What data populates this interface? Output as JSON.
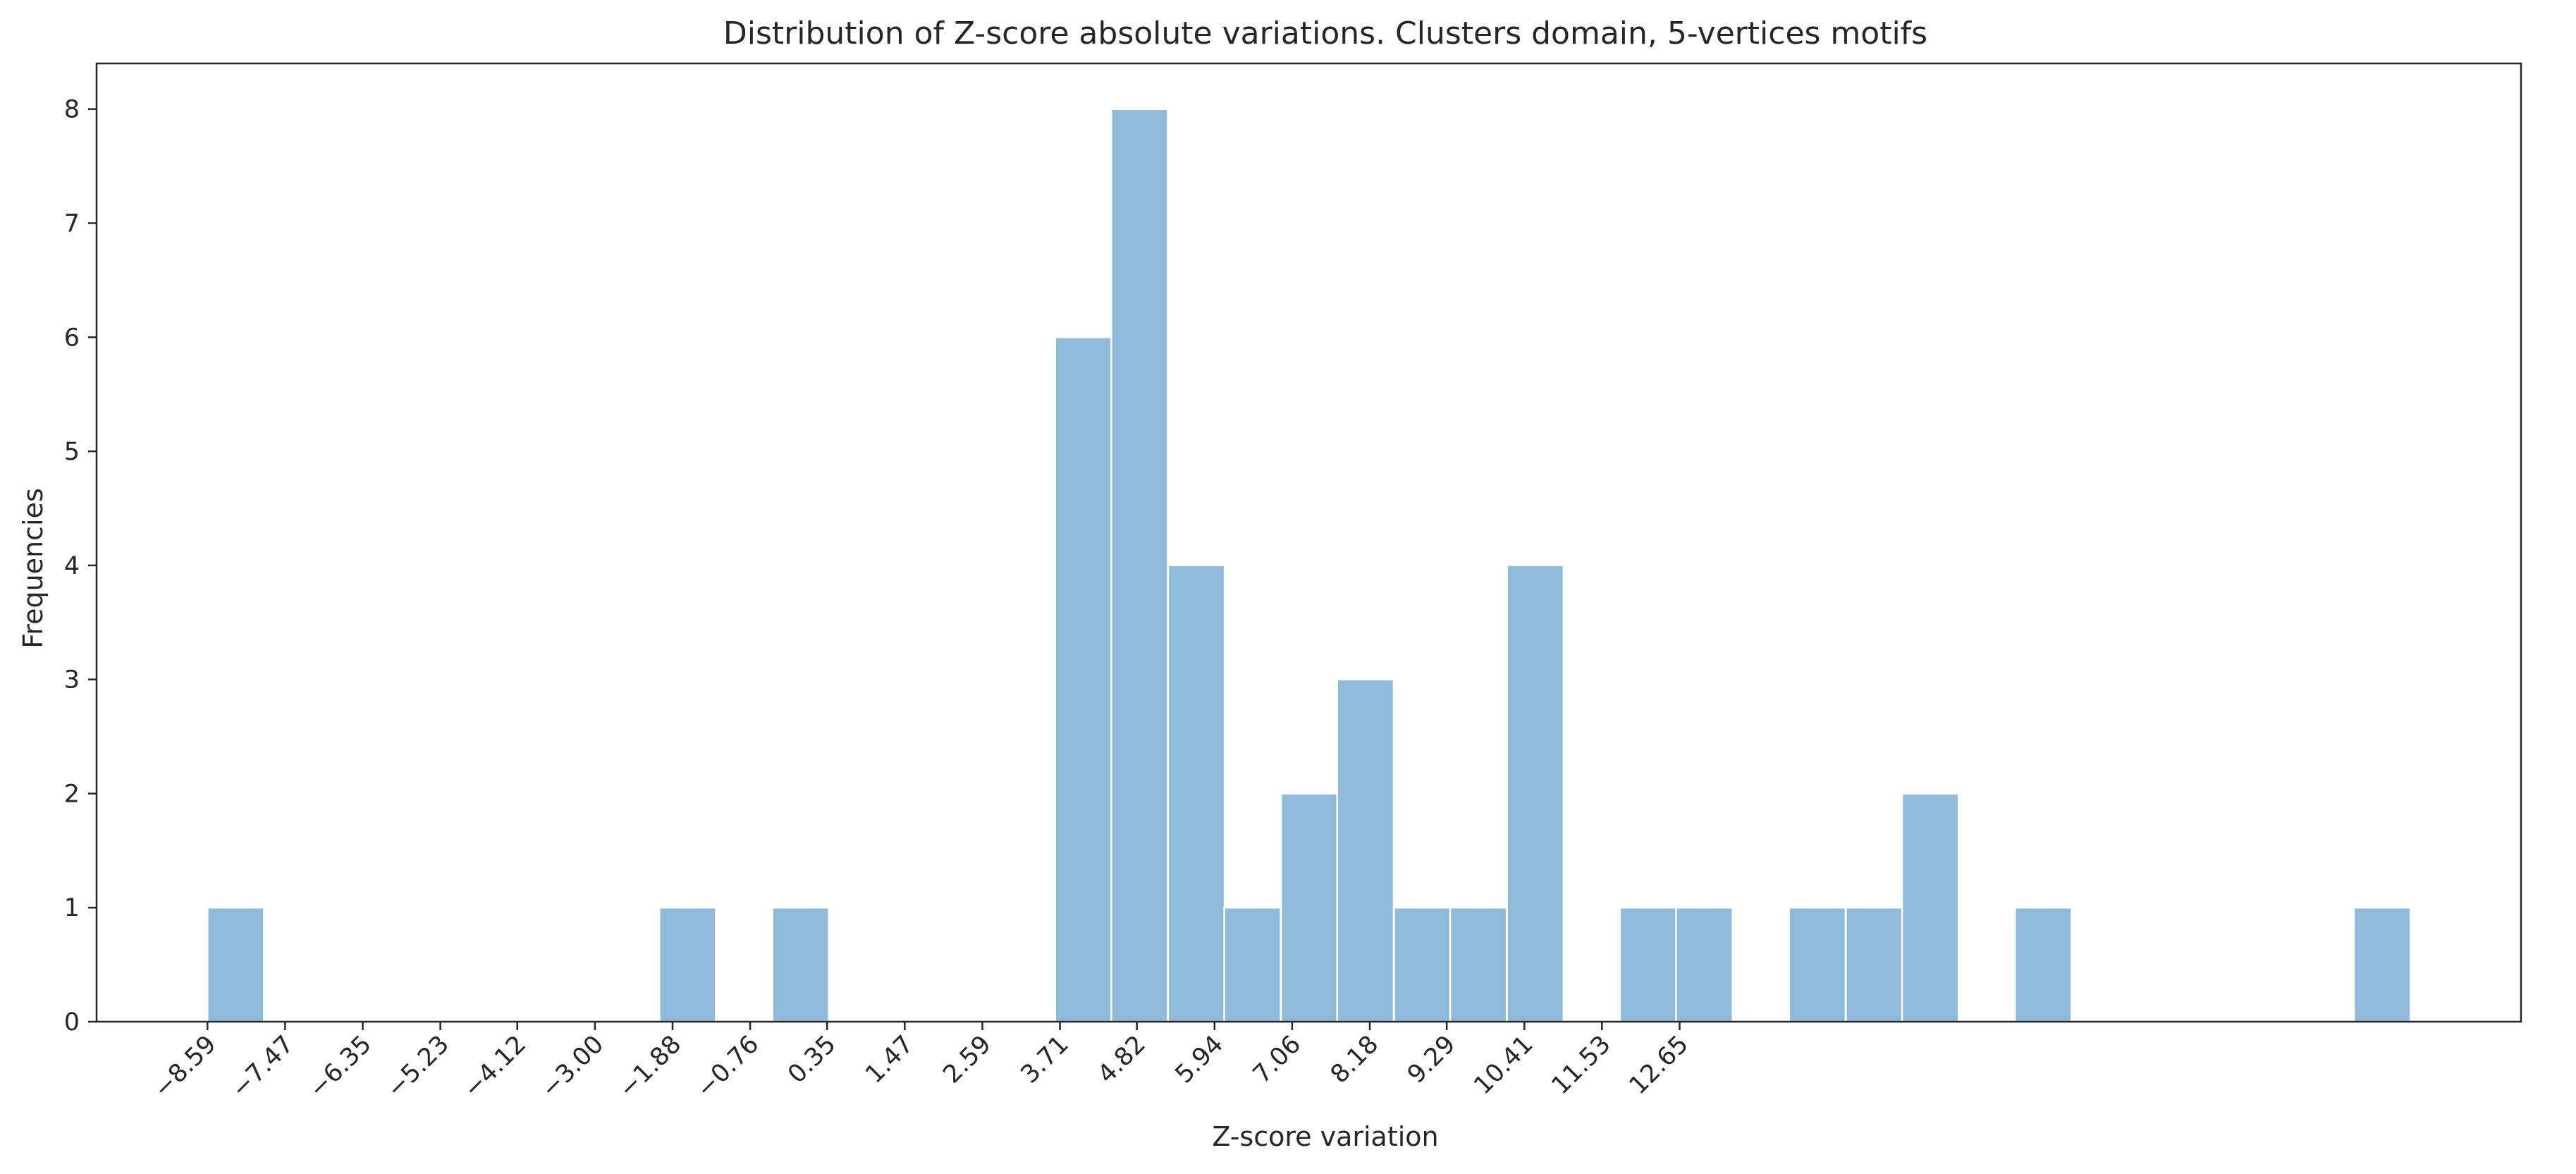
{
  "chart_data": {
    "type": "bar",
    "title": "Distribution of Z-score absolute variations. Clusters domain, 5-vertices motifs",
    "xlabel": "Z-score variation",
    "ylabel": "Frequencies",
    "bin_width": 0.815,
    "bins": [
      {
        "start": -8.59,
        "count": 1
      },
      {
        "start": -2.07,
        "count": 1
      },
      {
        "start": -0.44,
        "count": 1
      },
      {
        "start": 3.64,
        "count": 6
      },
      {
        "start": 4.45,
        "count": 8
      },
      {
        "start": 5.27,
        "count": 4
      },
      {
        "start": 6.08,
        "count": 1
      },
      {
        "start": 6.9,
        "count": 2
      },
      {
        "start": 7.71,
        "count": 3
      },
      {
        "start": 8.53,
        "count": 1
      },
      {
        "start": 9.34,
        "count": 1
      },
      {
        "start": 10.16,
        "count": 4
      },
      {
        "start": 11.79,
        "count": 1
      },
      {
        "start": 12.6,
        "count": 1
      },
      {
        "start": 14.23,
        "count": 1
      },
      {
        "start": 15.05,
        "count": 1
      },
      {
        "start": 15.86,
        "count": 2
      },
      {
        "start": 17.49,
        "count": 1
      },
      {
        "start": 22.38,
        "count": 1
      }
    ],
    "x_ticks": [
      -8.59,
      -7.47,
      -6.35,
      -5.23,
      -4.12,
      -3.0,
      -1.88,
      -0.76,
      0.35,
      1.47,
      2.59,
      3.71,
      4.82,
      5.94,
      7.06,
      8.18,
      9.29,
      10.41,
      11.53,
      12.65
    ],
    "x_tick_labels": [
      "−8.59",
      "−7.47",
      "−6.35",
      "−5.23",
      "−4.12",
      "−3.00",
      "−1.88",
      "−0.76",
      "0.35",
      "1.47",
      "2.59",
      "3.71",
      "4.82",
      "5.94",
      "7.06",
      "8.18",
      "9.29",
      "10.41",
      "11.53",
      "12.65"
    ],
    "y_ticks": [
      0,
      1,
      2,
      3,
      4,
      5,
      6,
      7,
      8
    ],
    "xlim": [
      -10.19,
      24.79
    ],
    "ylim": [
      0,
      8.4
    ],
    "grid": false,
    "colors": {
      "bar_fill": "#8fbad9",
      "bar_edge": "#ffffff",
      "axis": "#262626"
    }
  }
}
